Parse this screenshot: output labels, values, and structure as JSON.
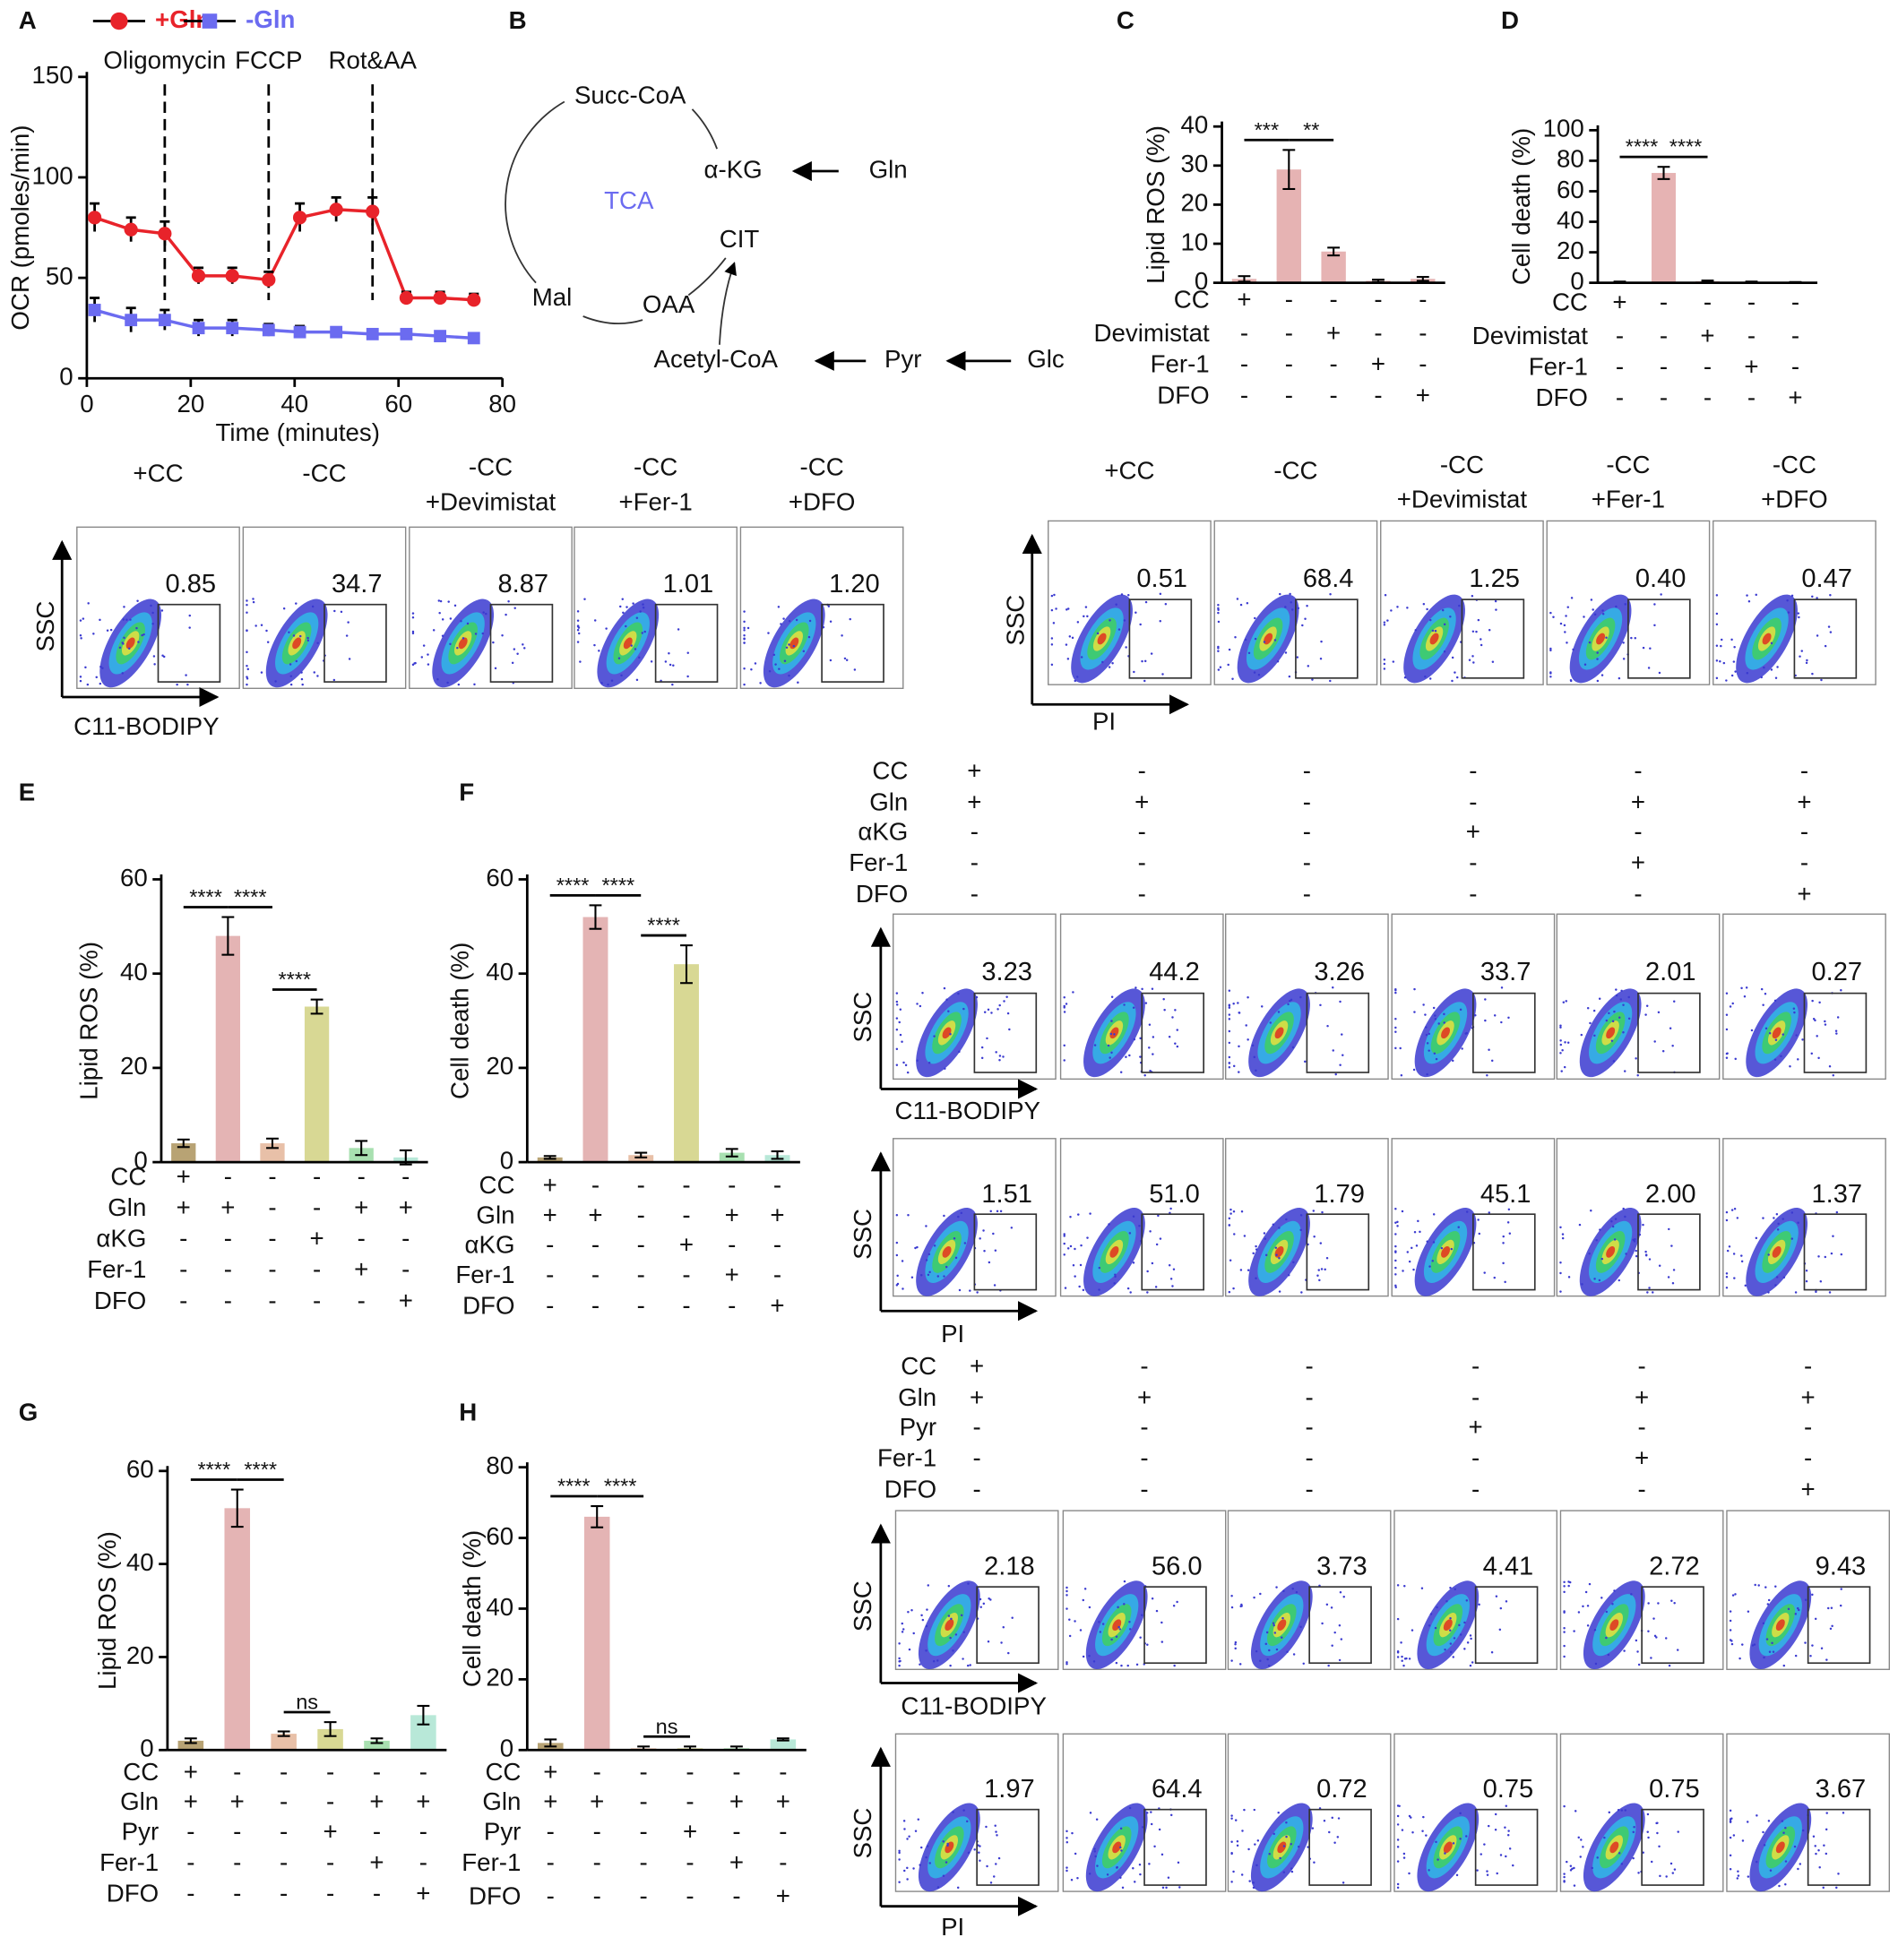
{
  "panel_labels": [
    "A",
    "B",
    "C",
    "D",
    "E",
    "F",
    "G",
    "H"
  ],
  "chart_data": [
    {
      "type": "line",
      "x": [
        1.5,
        8.5,
        15,
        21.5,
        28,
        35,
        41,
        48,
        55,
        61.5,
        68,
        74.5
      ],
      "series": [
        {
          "name": "+Gln",
          "color": "#e8232a",
          "marker": "circle",
          "values": [
            80,
            74,
            72,
            51,
            51,
            49,
            80,
            84,
            83,
            40,
            40,
            39
          ],
          "errors": [
            7,
            6,
            6,
            4,
            4,
            4,
            7,
            6,
            7,
            3,
            3,
            3
          ]
        },
        {
          "name": "-Gln",
          "color": "#6b6bf0",
          "marker": "square",
          "values": [
            34,
            29,
            29,
            25,
            25,
            24,
            23,
            23,
            22,
            22,
            21,
            20
          ],
          "errors": [
            6,
            6,
            5,
            4,
            4,
            3,
            3,
            2,
            2,
            2,
            2,
            2
          ]
        }
      ],
      "xlabel": "Time (minutes)",
      "ylabel": "OCR (pmoles/min)",
      "xlim": [
        0,
        80
      ],
      "xticks": [
        0,
        20,
        40,
        60,
        80
      ],
      "ylim": [
        0,
        150
      ],
      "yticks": [
        0,
        50,
        100,
        150
      ],
      "annotations": [
        {
          "x": 15,
          "label": "Oligomycin"
        },
        {
          "x": 35,
          "label": "FCCP"
        },
        {
          "x": 55,
          "label": "Rot&AA"
        }
      ]
    },
    {
      "type": "bar",
      "ylabel": "Lipid ROS (%)",
      "values": [
        1,
        29,
        8,
        0.5,
        1
      ],
      "errors": [
        0.7,
        5,
        1,
        0.3,
        0.5
      ],
      "colors": [
        "#e6b3b3",
        "#e6b3b3",
        "#e6b3b3",
        "#e6b3b3",
        "#e6b3b3"
      ],
      "ylim": [
        0,
        40
      ],
      "yticks": [
        0,
        10,
        20,
        30,
        40
      ],
      "significance": [
        {
          "from": 0,
          "to": 1,
          "label": "***"
        },
        {
          "from": 1,
          "to": 2,
          "label": "**"
        }
      ],
      "treatments": [
        {
          "name": "CC",
          "signs": [
            "+",
            "-",
            "-",
            "-",
            "-"
          ]
        },
        {
          "name": "Devimistat",
          "signs": [
            "-",
            "-",
            "+",
            "-",
            "-"
          ]
        },
        {
          "name": "Fer-1",
          "signs": [
            "-",
            "-",
            "-",
            "+",
            "-"
          ]
        },
        {
          "name": "DFO",
          "signs": [
            "-",
            "-",
            "-",
            "-",
            "+"
          ]
        }
      ]
    },
    {
      "type": "bar",
      "ylabel": "Cell death (%)",
      "values": [
        0.5,
        72,
        1,
        0.5,
        0.3
      ],
      "errors": [
        0.3,
        4,
        0.5,
        0.3,
        0.2
      ],
      "colors": [
        "#e6b3b3",
        "#e6b3b3",
        "#e6b3b3",
        "#e6b3b3",
        "#e6b3b3"
      ],
      "ylim": [
        0,
        100
      ],
      "yticks": [
        0,
        20,
        40,
        60,
        80,
        100
      ],
      "significance": [
        {
          "from": 0,
          "to": 1,
          "label": "****"
        },
        {
          "from": 1,
          "to": 2,
          "label": "****"
        }
      ],
      "treatments": [
        {
          "name": "CC",
          "signs": [
            "+",
            "-",
            "-",
            "-",
            "-"
          ]
        },
        {
          "name": "Devimistat",
          "signs": [
            "-",
            "-",
            "+",
            "-",
            "-"
          ]
        },
        {
          "name": "Fer-1",
          "signs": [
            "-",
            "-",
            "-",
            "+",
            "-"
          ]
        },
        {
          "name": "DFO",
          "signs": [
            "-",
            "-",
            "-",
            "-",
            "+"
          ]
        }
      ]
    },
    {
      "type": "bar",
      "ylabel": "Lipid ROS (%)",
      "values": [
        4,
        48,
        4,
        33,
        3,
        1
      ],
      "errors": [
        0.8,
        4,
        1,
        1.5,
        1.5,
        1.5
      ],
      "colors": [
        "#b8a374",
        "#e4b4b4",
        "#e8c0a8",
        "#d8d894",
        "#a8e0b0",
        "#b8e8d8"
      ],
      "ylim": [
        0,
        60
      ],
      "yticks": [
        0,
        20,
        40,
        60
      ],
      "significance": [
        {
          "from": 0,
          "to": 1,
          "label": "****"
        },
        {
          "from": 1,
          "to": 2,
          "label": "****"
        },
        {
          "from": 2,
          "to": 3,
          "label": "****"
        }
      ],
      "treatments": [
        {
          "name": "CC",
          "signs": [
            "+",
            "-",
            "-",
            "-",
            "-",
            "-"
          ]
        },
        {
          "name": "Gln",
          "signs": [
            "+",
            "+",
            "-",
            "-",
            "+",
            "+"
          ]
        },
        {
          "name": "αKG",
          "signs": [
            "-",
            "-",
            "-",
            "+",
            "-",
            "-"
          ]
        },
        {
          "name": "Fer-1",
          "signs": [
            "-",
            "-",
            "-",
            "-",
            "+",
            "-"
          ]
        },
        {
          "name": "DFO",
          "signs": [
            "-",
            "-",
            "-",
            "-",
            "-",
            "+"
          ]
        }
      ]
    },
    {
      "type": "bar",
      "ylabel": "Cell death (%)",
      "values": [
        1,
        52,
        1.5,
        42,
        2,
        1.5
      ],
      "errors": [
        0.3,
        2.5,
        0.5,
        4,
        0.8,
        0.8
      ],
      "colors": [
        "#b8a374",
        "#e4b4b4",
        "#e8c0a8",
        "#d8d894",
        "#a8e0b0",
        "#b8e8d8"
      ],
      "ylim": [
        0,
        60
      ],
      "yticks": [
        0,
        20,
        40,
        60
      ],
      "significance": [
        {
          "from": 0,
          "to": 1,
          "label": "****"
        },
        {
          "from": 1,
          "to": 2,
          "label": "****"
        },
        {
          "from": 2,
          "to": 3,
          "label": "****"
        }
      ],
      "treatments": [
        {
          "name": "CC",
          "signs": [
            "+",
            "-",
            "-",
            "-",
            "-",
            "-"
          ]
        },
        {
          "name": "Gln",
          "signs": [
            "+",
            "+",
            "-",
            "-",
            "+",
            "+"
          ]
        },
        {
          "name": "αKG",
          "signs": [
            "-",
            "-",
            "-",
            "+",
            "-",
            "-"
          ]
        },
        {
          "name": "Fer-1",
          "signs": [
            "-",
            "-",
            "-",
            "-",
            "+",
            "-"
          ]
        },
        {
          "name": "DFO",
          "signs": [
            "-",
            "-",
            "-",
            "-",
            "-",
            "+"
          ]
        }
      ]
    },
    {
      "type": "bar",
      "ylabel": "Lipid ROS (%)",
      "values": [
        2,
        52,
        3.5,
        4.5,
        2,
        7.5
      ],
      "errors": [
        0.5,
        4,
        0.5,
        1.5,
        0.5,
        2
      ],
      "colors": [
        "#b8a374",
        "#e4b4b4",
        "#e8c0a8",
        "#d8d894",
        "#a8e0b0",
        "#b8e8d8"
      ],
      "ylim": [
        0,
        60
      ],
      "yticks": [
        0,
        20,
        40,
        60
      ],
      "significance": [
        {
          "from": 0,
          "to": 1,
          "label": "****"
        },
        {
          "from": 1,
          "to": 2,
          "label": "****"
        },
        {
          "from": 2,
          "to": 3,
          "label": "ns"
        }
      ],
      "treatments": [
        {
          "name": "CC",
          "signs": [
            "+",
            "-",
            "-",
            "-",
            "-",
            "-"
          ]
        },
        {
          "name": "Gln",
          "signs": [
            "+",
            "+",
            "-",
            "-",
            "+",
            "+"
          ]
        },
        {
          "name": "Pyr",
          "signs": [
            "-",
            "-",
            "-",
            "+",
            "-",
            "-"
          ]
        },
        {
          "name": "Fer-1",
          "signs": [
            "-",
            "-",
            "-",
            "-",
            "+",
            "-"
          ]
        },
        {
          "name": "DFO",
          "signs": [
            "-",
            "-",
            "-",
            "-",
            "-",
            "+"
          ]
        }
      ]
    },
    {
      "type": "bar",
      "ylabel": "Cell death (%)",
      "values": [
        2,
        66,
        0.5,
        0.5,
        0.5,
        3
      ],
      "errors": [
        1,
        3,
        0.5,
        0.5,
        0.5,
        0.3
      ],
      "colors": [
        "#b8a374",
        "#e4b4b4",
        "#e8c0a8",
        "#d8d894",
        "#a8e0b0",
        "#b8e8d8"
      ],
      "ylim": [
        0,
        80
      ],
      "yticks": [
        0,
        20,
        40,
        60,
        80
      ],
      "significance": [
        {
          "from": 0,
          "to": 1,
          "label": "****"
        },
        {
          "from": 1,
          "to": 2,
          "label": "****"
        },
        {
          "from": 2,
          "to": 3,
          "label": "ns"
        }
      ],
      "treatments": [
        {
          "name": "CC",
          "signs": [
            "+",
            "-",
            "-",
            "-",
            "-",
            "-"
          ]
        },
        {
          "name": "Gln",
          "signs": [
            "+",
            "+",
            "-",
            "-",
            "+",
            "+"
          ]
        },
        {
          "name": "Pyr",
          "signs": [
            "-",
            "-",
            "-",
            "+",
            "-",
            "-"
          ]
        },
        {
          "name": "Fer-1",
          "signs": [
            "-",
            "-",
            "-",
            "-",
            "+",
            "-"
          ]
        },
        {
          "name": "DFO",
          "signs": [
            "-",
            "-",
            "-",
            "-",
            "-",
            "+"
          ]
        }
      ]
    }
  ],
  "diagram": {
    "center_label": "TCA",
    "nodes": [
      "Succ-CoA",
      "α-KG",
      "Gln",
      "CIT",
      "Mal",
      "OAA",
      "Acetyl-CoA",
      "Pyr",
      "Glc"
    ]
  },
  "flow_panels": [
    {
      "columns": [
        [
          "+CC"
        ],
        [
          "-CC"
        ],
        [
          "-CC",
          "+Devimistat"
        ],
        [
          "-CC",
          "+Fer-1"
        ],
        [
          "-CC",
          "+DFO"
        ]
      ],
      "plots": [
        {
          "y_label": "SSC",
          "x_label": "C11-BODIPY",
          "values": [
            "0.85",
            "34.7",
            "8.87",
            "1.01",
            "1.20"
          ]
        }
      ]
    },
    {
      "columns": [
        [
          "+CC"
        ],
        [
          "-CC"
        ],
        [
          "-CC",
          "+Devimistat"
        ],
        [
          "-CC",
          "+Fer-1"
        ],
        [
          "-CC",
          "+DFO"
        ]
      ],
      "plots": [
        {
          "y_label": "SSC",
          "x_label": "PI",
          "values": [
            "0.51",
            "68.4",
            "1.25",
            "0.40",
            "0.47"
          ]
        }
      ]
    },
    {
      "treatments": [
        {
          "name": "CC",
          "signs": [
            "+",
            "-",
            "-",
            "-",
            "-",
            "-"
          ]
        },
        {
          "name": "Gln",
          "signs": [
            "+",
            "+",
            "-",
            "-",
            "+",
            "+"
          ]
        },
        {
          "name": "αKG",
          "signs": [
            "-",
            "-",
            "-",
            "+",
            "-",
            "-"
          ]
        },
        {
          "name": "Fer-1",
          "signs": [
            "-",
            "-",
            "-",
            "-",
            "+",
            "-"
          ]
        },
        {
          "name": "DFO",
          "signs": [
            "-",
            "-",
            "-",
            "-",
            "-",
            "+"
          ]
        }
      ],
      "plots": [
        {
          "y_label": "SSC",
          "x_label": "C11-BODIPY",
          "values": [
            "3.23",
            "44.2",
            "3.26",
            "33.7",
            "2.01",
            "0.27"
          ]
        },
        {
          "y_label": "SSC",
          "x_label": "PI",
          "values": [
            "1.51",
            "51.0",
            "1.79",
            "45.1",
            "2.00",
            "1.37"
          ]
        }
      ]
    },
    {
      "treatments": [
        {
          "name": "CC",
          "signs": [
            "+",
            "-",
            "-",
            "-",
            "-",
            "-"
          ]
        },
        {
          "name": "Gln",
          "signs": [
            "+",
            "+",
            "-",
            "-",
            "+",
            "+"
          ]
        },
        {
          "name": "Pyr",
          "signs": [
            "-",
            "-",
            "-",
            "+",
            "-",
            "-"
          ]
        },
        {
          "name": "Fer-1",
          "signs": [
            "-",
            "-",
            "-",
            "-",
            "+",
            "-"
          ]
        },
        {
          "name": "DFO",
          "signs": [
            "-",
            "-",
            "-",
            "-",
            "-",
            "+"
          ]
        }
      ],
      "plots": [
        {
          "y_label": "SSC",
          "x_label": "C11-BODIPY",
          "values": [
            "2.18",
            "56.0",
            "3.73",
            "4.41",
            "2.72",
            "9.43"
          ]
        },
        {
          "y_label": "SSC",
          "x_label": "PI",
          "values": [
            "1.97",
            "64.4",
            "0.72",
            "0.75",
            "0.75",
            "3.67"
          ]
        }
      ]
    }
  ]
}
